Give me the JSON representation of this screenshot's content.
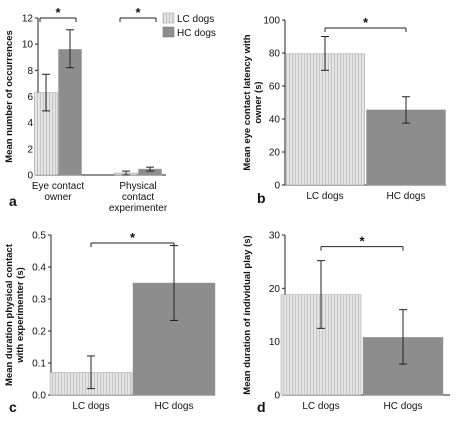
{
  "chart_data": [
    {
      "panel": "a",
      "type": "bar",
      "ylabel": "Mean number of occurrences",
      "ylim": [
        0,
        12
      ],
      "yticks": [
        0,
        2,
        4,
        6,
        8,
        10,
        12
      ],
      "categories": [
        "Eye contact owner",
        "Physical contact experimenter"
      ],
      "category_lines": [
        [
          "Eye contact",
          "owner"
        ],
        [
          "Physical",
          "contact",
          "experimenter"
        ]
      ],
      "legend": {
        "placement": "top-right",
        "entries": [
          "LC dogs",
          "HC dogs"
        ]
      },
      "series": [
        {
          "name": "LC dogs",
          "values": [
            6.3,
            0.15
          ],
          "err_low": [
            4.9,
            0.0
          ],
          "err_high": [
            7.7,
            0.3
          ]
        },
        {
          "name": "HC dogs",
          "values": [
            9.6,
            0.45
          ],
          "err_low": [
            8.2,
            0.3
          ],
          "err_high": [
            11.1,
            0.6
          ]
        }
      ],
      "significance": [
        {
          "group": 0,
          "label": "*"
        },
        {
          "group": 1,
          "label": "*"
        }
      ]
    },
    {
      "panel": "b",
      "type": "bar",
      "ylabel": "Mean eye contact latency with owner (s)",
      "ylabel_lines": [
        "Mean eye contact latency with",
        "owner (s)"
      ],
      "ylim": [
        0,
        100
      ],
      "yticks": [
        0,
        20,
        40,
        60,
        80,
        100
      ],
      "categories": [
        "LC dogs",
        "HC dogs"
      ],
      "values": [
        79.5,
        45.5
      ],
      "err_low": [
        69.5,
        37.5
      ],
      "err_high": [
        90.0,
        53.5
      ],
      "significance": [
        {
          "label": "*"
        }
      ]
    },
    {
      "panel": "c",
      "type": "bar",
      "ylabel": "Mean duration physical contact with experimenter (s)",
      "ylabel_lines": [
        "Mean duration physical contact",
        "with experimenter (s)"
      ],
      "ylim": [
        0,
        0.5
      ],
      "yticks": [
        0.0,
        0.1,
        0.2,
        0.3,
        0.4,
        0.5
      ],
      "yticklabels": [
        "0.0",
        "0.1",
        "0.2",
        "0.3",
        "0.4",
        "0.5"
      ],
      "categories": [
        "LC dogs",
        "HC dogs"
      ],
      "values": [
        0.07,
        0.35
      ],
      "err_low": [
        0.02,
        0.233
      ],
      "err_high": [
        0.122,
        0.467
      ],
      "significance": [
        {
          "label": "*"
        }
      ]
    },
    {
      "panel": "d",
      "type": "bar",
      "ylabel": "Mean duration of individual play (s)",
      "ylim": [
        0,
        30
      ],
      "yticks": [
        0,
        10,
        20,
        30
      ],
      "categories": [
        "LC dogs",
        "HC dogs"
      ],
      "values": [
        18.8,
        10.8
      ],
      "err_low": [
        12.5,
        5.8
      ],
      "err_high": [
        25.2,
        16.0
      ],
      "significance": [
        {
          "label": "*"
        }
      ]
    }
  ],
  "colors": {
    "lc_fill": "#e4e4e4",
    "lc_stripe": "#c6c6c6",
    "hc_fill": "#8d8d8d",
    "axis": "#222222",
    "legend_hc": "#8d8d8d"
  }
}
